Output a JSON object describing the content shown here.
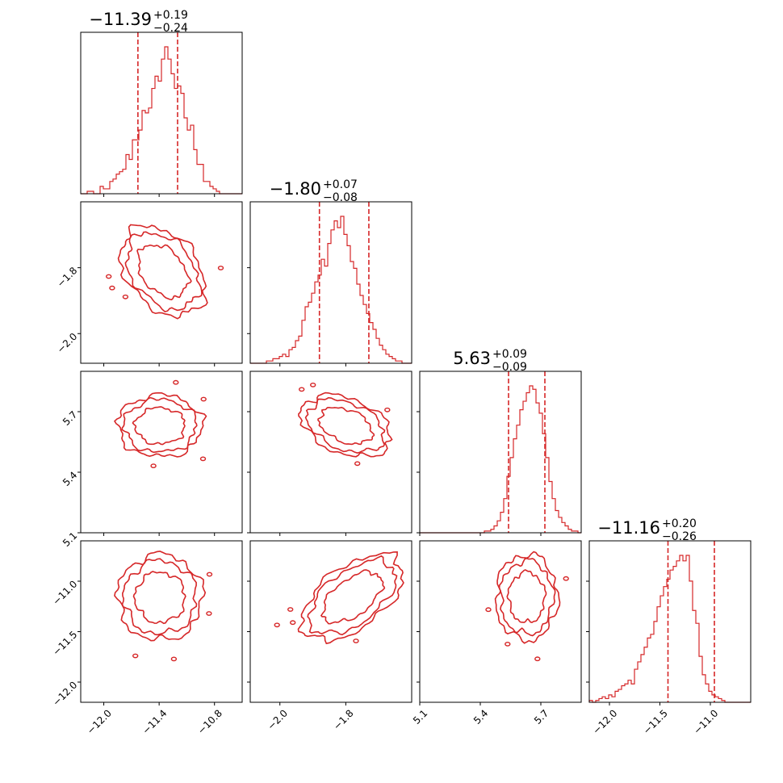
{
  "chart_data": {
    "type": "corner",
    "color": "#d62728",
    "parameters": [
      {
        "range": [
          -12.25,
          -10.5
        ],
        "ticks": [
          -12.0,
          -11.4,
          -10.8
        ],
        "tick_labels": [
          "−12.0",
          "−11.4",
          "−10.8"
        ],
        "median": -11.39,
        "q16": -11.63,
        "q84": -11.2,
        "title_value": "−11.39",
        "title_plus": "+0.19",
        "title_minus": "−0.24"
      },
      {
        "range": [
          -2.09,
          -1.6
        ],
        "ticks": [
          -2.0,
          -1.8
        ],
        "tick_labels": [
          "−2.0",
          "−1.8"
        ],
        "median": -1.8,
        "q16": -1.88,
        "q84": -1.73,
        "title_value": "−1.80",
        "title_plus": "+0.07",
        "title_minus": "−0.08"
      },
      {
        "range": [
          5.1,
          5.9
        ],
        "ticks": [
          5.1,
          5.4,
          5.7
        ],
        "tick_labels": [
          "5.1",
          "5.4",
          "5.7"
        ],
        "median": 5.63,
        "q16": 5.54,
        "q84": 5.72,
        "title_value": "5.63",
        "title_plus": "+0.09",
        "title_minus": "−0.09"
      },
      {
        "range": [
          -12.2,
          -10.6
        ],
        "ticks": [
          -12.0,
          -11.5,
          -11.0
        ],
        "tick_labels": [
          "−12.0",
          "−11.5",
          "−11.0"
        ],
        "median": -11.16,
        "q16": -11.42,
        "q84": -10.96,
        "title_value": "−11.16",
        "title_plus": "+0.20",
        "title_minus": "−0.26"
      }
    ],
    "histograms": [
      {
        "counts": [
          0,
          0,
          1,
          1,
          0,
          0,
          3,
          2,
          2,
          5,
          6,
          8,
          9,
          10,
          16,
          14,
          22,
          22,
          26,
          34,
          33,
          35,
          43,
          48,
          46,
          55,
          60,
          55,
          49,
          43,
          44,
          41,
          31,
          26,
          28,
          18,
          12,
          12,
          5,
          5,
          3,
          2,
          1,
          0,
          0,
          0,
          0,
          0,
          0,
          0
        ]
      },
      {
        "counts": [
          0,
          0,
          0,
          0,
          0,
          1,
          1,
          2,
          2,
          3,
          4,
          3,
          6,
          7,
          10,
          12,
          19,
          25,
          27,
          31,
          36,
          39,
          46,
          43,
          53,
          59,
          63,
          60,
          65,
          57,
          52,
          45,
          42,
          35,
          30,
          26,
          22,
          18,
          15,
          11,
          8,
          6,
          4,
          3,
          2,
          1,
          1,
          0,
          0,
          0
        ]
      },
      {
        "counts": [
          0,
          0,
          0,
          0,
          0,
          0,
          0,
          0,
          0,
          0,
          0,
          0,
          0,
          0,
          0,
          0,
          0,
          0,
          0,
          0,
          1,
          1,
          2,
          4,
          7,
          12,
          20,
          33,
          44,
          55,
          63,
          72,
          77,
          82,
          86,
          84,
          76,
          70,
          58,
          44,
          30,
          20,
          13,
          9,
          6,
          4,
          2,
          1,
          1,
          0
        ]
      },
      {
        "counts": [
          1,
          0,
          1,
          2,
          3,
          2,
          4,
          3,
          6,
          7,
          9,
          10,
          12,
          10,
          18,
          22,
          26,
          30,
          35,
          37,
          44,
          52,
          58,
          63,
          67,
          72,
          74,
          77,
          80,
          77,
          80,
          66,
          50,
          43,
          25,
          15,
          10,
          6,
          4,
          3,
          2,
          1,
          0,
          0,
          0,
          0,
          0,
          0,
          0,
          0
        ]
      }
    ],
    "pairs": [
      {
        "row": 1,
        "col": 0,
        "center": [
          -11.36,
          -1.81
        ],
        "sigma": [
          0.27,
          0.08
        ],
        "rho": -0.35
      },
      {
        "row": 2,
        "col": 0,
        "center": [
          -11.39,
          5.63
        ],
        "sigma": [
          0.27,
          0.09
        ],
        "rho": 0.0
      },
      {
        "row": 2,
        "col": 1,
        "center": [
          -1.8,
          5.63
        ],
        "sigma": [
          0.08,
          0.09
        ],
        "rho": -0.35
      },
      {
        "row": 3,
        "col": 0,
        "center": [
          -11.39,
          -11.16
        ],
        "sigma": [
          0.27,
          0.25
        ],
        "rho": 0.0
      },
      {
        "row": 3,
        "col": 1,
        "center": [
          -1.78,
          -11.16
        ],
        "sigma": [
          0.09,
          0.25
        ],
        "rho": 0.55
      },
      {
        "row": 3,
        "col": 2,
        "center": [
          5.63,
          -11.16
        ],
        "sigma": [
          0.09,
          0.25
        ],
        "rho": 0.0
      }
    ],
    "contour_levels_sigma": [
      1.0,
      1.45,
      1.7
    ]
  }
}
